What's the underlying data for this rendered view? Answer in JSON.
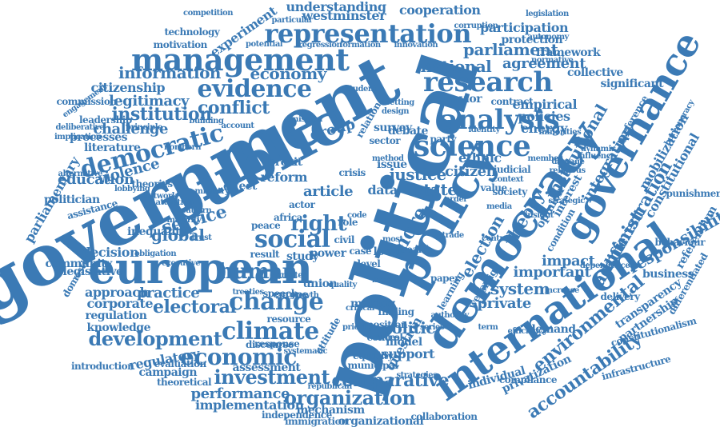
{
  "colors": {
    "word": "#3b7ab5",
    "background": "#ffffff"
  },
  "words": [
    "government",
    "political",
    "public",
    "european",
    "democracy",
    "policy",
    "international",
    "governance",
    "management",
    "representation",
    "research",
    "science",
    "analysis",
    "evidence",
    "democratic",
    "change",
    "social",
    "human",
    "climate",
    "economic",
    "development",
    "organization",
    "comparative",
    "accountability",
    "environmental",
    "institutional",
    "electoral",
    "conflict",
    "institution",
    "legitimacy",
    "information",
    "economy",
    "parliament",
    "national",
    "agreement",
    "understanding",
    "cooperation",
    "westminster",
    "participation",
    "protection",
    "framework",
    "citizenship",
    "challenge",
    "literature",
    "violence",
    "education",
    "processes",
    "parliamentary",
    "politician",
    "service",
    "global",
    "inequality",
    "decision",
    "approach",
    "practice",
    "corporate",
    "regulation",
    "knowledge",
    "introduction",
    "regulatory",
    "evaluation",
    "campaign",
    "theoretical",
    "assessment",
    "investment",
    "performance",
    "implementation",
    "independence",
    "mechanism",
    "immigration",
    "organizational",
    "collaboration",
    "question",
    "support",
    "model",
    "politic",
    "justice",
    "ethnic",
    "citizen",
    "energy",
    "empirical",
    "policies",
    "collective",
    "system",
    "private",
    "important",
    "impact",
    "demand",
    "responsibility",
    "administration",
    "different",
    "integration",
    "constitutional",
    "punishment",
    "business",
    "partnership",
    "transparency",
    "infrastructure",
    "privatization",
    "individual",
    "constitutionalism",
    "differentiated",
    "right",
    "state",
    "article",
    "data",
    "union",
    "power",
    "result",
    "study",
    "case",
    "level",
    "role",
    "crisis",
    "reform",
    "effect",
    "theories",
    "network",
    "experiment",
    "motivation",
    "technology",
    "competition",
    "potential",
    "particular",
    "corruption",
    "autonomy",
    "legislation",
    "normative",
    "behavior",
    "contract",
    "survey",
    "group",
    "sector",
    "issue",
    "brexit",
    "debate",
    "identity",
    "relation",
    "student",
    "design",
    "party",
    "value",
    "society",
    "media",
    "context",
    "judicial",
    "opinion",
    "interest",
    "condition",
    "making",
    "equality",
    "municipal",
    "finding",
    "paper",
    "learning",
    "welfare",
    "foreign",
    "election",
    "theory",
    "health",
    "more",
    "trade",
    "moral",
    "europe",
    "speech",
    "resource",
    "discourse",
    "response",
    "attitude",
    "quality",
    "domestic",
    "legislative",
    "community",
    "assistance",
    "leadership",
    "commission",
    "engagement",
    "deliberative",
    "implication",
    "account",
    "principle",
    "northern",
    "building",
    "emission",
    "minorities",
    "dynamic",
    "influence",
    "delivery",
    "significant",
    "preference",
    "mobilization",
    "bureaucracy",
    "referendum",
    "behaviour",
    "increase",
    "efficiency",
    "compliance",
    "republican",
    "systematic",
    "insight",
    "peace",
    "africa",
    "actor",
    "local",
    "civil",
    "code",
    "most",
    "order",
    "position",
    "control",
    "priority",
    "authority",
    "strategic",
    "religious",
    "damage",
    "member",
    "method",
    "innovation",
    "formation",
    "regression",
    "majority",
    "obligation",
    "executive",
    "trust",
    "pattern",
    "alternative",
    "lobbying",
    "attention",
    "ministry",
    "treaties",
    "growth",
    "greater",
    "central",
    "dependence",
    "strategies",
    "duties",
    "critical",
    "term",
    "series",
    "setting"
  ]
}
